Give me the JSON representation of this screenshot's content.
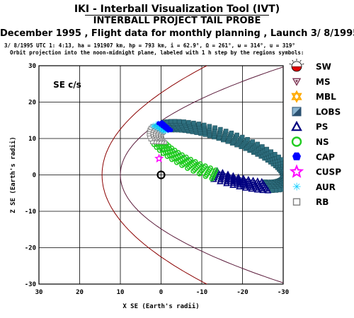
{
  "header": {
    "title": "IKI - Interball Visualization Tool (IVT)",
    "subtitle": "INTERBALL PROJECT TAIL PROBE",
    "flight_line": "December 1995 ,  Flight data for monthly planning ,   Launch  3/ 8/1995",
    "params_line": "3/ 8/1995 UTC  1: 4:13, ha = 191907 km, hp =    793 km, i = 62.9°, Ω = 261°, ω = 314°, u = 319°",
    "orbit_line": "Orbit projection into the noon-midnight plane, labeled with 1 h step by the regions symbols:"
  },
  "colors": {
    "grid": "#000000",
    "bowshock": "#8b0000",
    "magnetopause": "#5a1a3a",
    "lobs": "#2f7080",
    "ps": "#000080",
    "ns": "#22cc22",
    "cap": "#0000ff",
    "cusp": "#ff00ff",
    "aur": "#00ccff",
    "rb": "#808080",
    "mbl": "#ffaa00"
  },
  "chart_data": {
    "type": "scatter",
    "annotation": "SE c/s",
    "xlabel": "X SE (Earth's radii)",
    "ylabel": "Z SE (Earth's radii)",
    "xlim": [
      30,
      -30
    ],
    "ylim": [
      -30,
      30
    ],
    "xticks": [
      "30",
      "20",
      "10",
      "0",
      "-10",
      "-20",
      "-30"
    ],
    "yticks": [
      "30",
      "20",
      "10",
      "0",
      "-10",
      "-20",
      "-30"
    ],
    "grid": true,
    "legend_position": "right",
    "legend": [
      {
        "symbol": "sw",
        "label": "SW"
      },
      {
        "symbol": "ms",
        "label": "MS"
      },
      {
        "symbol": "mbl",
        "label": "MBL"
      },
      {
        "symbol": "lobs",
        "label": "LOBS"
      },
      {
        "symbol": "ps",
        "label": "PS"
      },
      {
        "symbol": "ns",
        "label": "NS"
      },
      {
        "symbol": "cap",
        "label": "CAP"
      },
      {
        "symbol": "cusp",
        "label": "CUSP"
      },
      {
        "symbol": "aur",
        "label": "AUR"
      },
      {
        "symbol": "rb",
        "label": "RB"
      }
    ],
    "boundaries": [
      {
        "kind": "bowshock",
        "nose_x": 14.5,
        "flare": 35
      },
      {
        "kind": "magnetopause",
        "nose_x": 10,
        "flare": 22
      }
    ],
    "orbit": {
      "center_x": -15,
      "center_z": 5.2,
      "a": 16,
      "b": 4.2,
      "tilt_deg": 22,
      "perigee_shift": 0.35
    },
    "regions": [
      {
        "region": "lobs",
        "t_start": 0.08,
        "t_end": 0.62
      },
      {
        "region": "ps",
        "t_start": 0.62,
        "t_end": 0.75
      },
      {
        "region": "ns",
        "t_start": 0.75,
        "t_end": 0.93
      },
      {
        "region": "rb",
        "t_start": 0.93,
        "t_end": 1.03
      },
      {
        "region": "aur",
        "t_start": 1.03,
        "t_end": 1.06
      },
      {
        "region": "cap",
        "t_start": 1.06,
        "t_end": 1.08
      }
    ],
    "cusp_point": {
      "x": 0.5,
      "z": 4.5
    },
    "earth": {
      "x": 0,
      "z": 0,
      "radius": 1
    }
  }
}
